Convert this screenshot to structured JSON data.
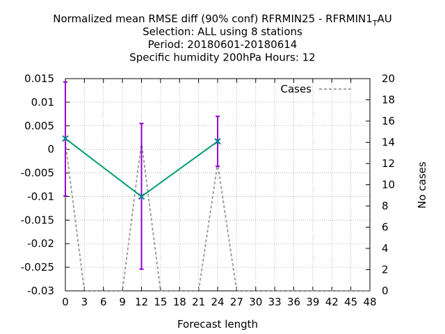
{
  "chart_data": {
    "type": "line",
    "title_lines": [
      "Normalized mean RMSE diff (90% conf) RFRMIN25 - RFRMIN1",
      "Selection: ALL using     8 stations",
      "Period: 20180601-20180614",
      "Specific humidity 200hPa   Hours:  12"
    ],
    "title_suffix_sub": "T",
    "title_suffix_tail": "AU",
    "xlabel": "Forecast length",
    "ylabel": "",
    "y2label": "No cases",
    "xlim": [
      0,
      48
    ],
    "ylim": [
      -0.03,
      0.015
    ],
    "y2lim": [
      0,
      20
    ],
    "xticks": [
      0,
      3,
      6,
      9,
      12,
      15,
      18,
      21,
      24,
      27,
      30,
      33,
      36,
      39,
      42,
      45,
      48
    ],
    "yticks": [
      0.015,
      0.01,
      0.005,
      0,
      -0.005,
      -0.01,
      -0.015,
      -0.02,
      -0.025,
      -0.03
    ],
    "ytick_labels": [
      "0.015",
      "0.01",
      "0.005",
      "0",
      "-0.005",
      "-0.01",
      "-0.015",
      "-0.02",
      "-0.025",
      "-0.03"
    ],
    "y2ticks": [
      0,
      2,
      4,
      6,
      8,
      10,
      12,
      14,
      16,
      18,
      20
    ],
    "grid": true,
    "legend_position": "top-right",
    "series": [
      {
        "name": "",
        "axis": "y",
        "color": "#009e73",
        "marker_color": "#008b8b",
        "x": [
          0,
          12,
          24
        ],
        "y": [
          0.0023,
          -0.01,
          0.0017
        ],
        "error_low": [
          -0.0099,
          -0.0254,
          -0.0036
        ],
        "error_high": [
          0.0143,
          0.0055,
          0.007
        ],
        "error_color": "#9400d3"
      },
      {
        "name": "Cases",
        "axis": "y2",
        "color": "#a0a0a0",
        "dashed": true,
        "x": [
          0,
          3,
          9,
          12,
          15,
          21,
          24,
          27,
          48
        ],
        "y": [
          14,
          0,
          0,
          14,
          0,
          0,
          12,
          0,
          0
        ]
      }
    ]
  }
}
